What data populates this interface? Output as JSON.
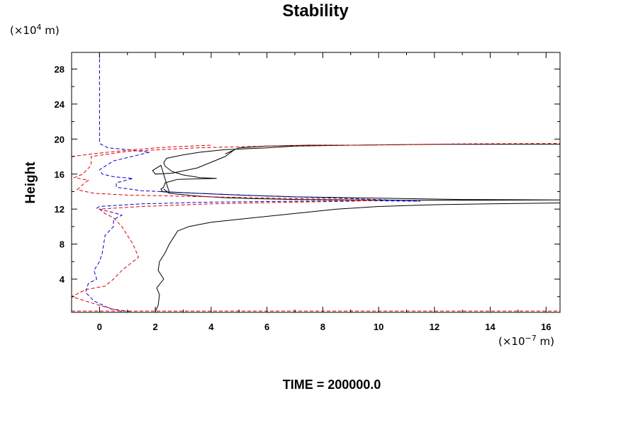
{
  "chart_data": {
    "type": "line",
    "title": "Stability",
    "ylabel": "Height",
    "xlabel": "",
    "y_unit": {
      "prefix": "(×10",
      "exp": "4",
      "suffix": " m)"
    },
    "x_unit": {
      "prefix": "(×10",
      "exp": "−7",
      "suffix": " m)"
    },
    "footer": "TIME = 200000.0",
    "xlim": [
      -1.0,
      16.5
    ],
    "ylim": [
      0.2,
      29.9
    ],
    "x_ticks": [
      0,
      2,
      4,
      6,
      8,
      10,
      12,
      14,
      16
    ],
    "y_ticks": [
      4,
      8,
      12,
      16,
      20,
      24,
      28
    ],
    "x_tick_labels": [
      "0",
      "2",
      "4",
      "6",
      "8",
      "10",
      "12",
      "14",
      "16"
    ],
    "y_tick_labels": [
      "4",
      "8",
      "12",
      "16",
      "20",
      "24",
      "28"
    ],
    "series": [
      {
        "name": "solid",
        "color": "#000000",
        "style": "solid",
        "x": [
          2.0,
          2.1,
          2.15,
          2.05,
          2.3,
          2.1,
          2.15,
          2.35,
          2.5,
          2.7,
          2.8,
          3.2,
          4.0,
          5.5,
          7.0,
          8.5,
          10.0,
          12.0,
          14.0,
          16.5
        ],
        "y": [
          0.3,
          1.0,
          2.2,
          3.0,
          4.0,
          5.0,
          6.0,
          7.0,
          8.0,
          9.0,
          9.5,
          10.0,
          10.5,
          11.0,
          11.5,
          12.0,
          12.3,
          12.5,
          12.6,
          12.7
        ]
      },
      {
        "name": "solid-upper",
        "color": "#000000",
        "style": "solid",
        "x": [
          16.5,
          12.0,
          9.0,
          7.0,
          6.0,
          4.5,
          3.6,
          3.0,
          2.4,
          2.3,
          2.35,
          2.6,
          3.0,
          3.6,
          4.2,
          2.8,
          2.35,
          2.3,
          2.2,
          2.25,
          2.5,
          2.2,
          1.9,
          2.0,
          2.6,
          3.5,
          4.5,
          4.8,
          4.5,
          5.0,
          6.0,
          7.5,
          9.0,
          12.0,
          16.5
        ],
        "y": [
          19.4,
          19.4,
          19.3,
          19.2,
          19.0,
          18.8,
          18.5,
          18.2,
          17.8,
          17.3,
          16.9,
          16.3,
          15.9,
          15.6,
          15.5,
          15.4,
          15.0,
          14.5,
          14.3,
          14.0,
          13.9,
          17.0,
          16.4,
          16.0,
          16.1,
          16.7,
          18.0,
          18.7,
          18.3,
          19.0,
          19.2,
          19.3,
          19.3,
          19.4,
          19.4
        ]
      },
      {
        "name": "solid-spike",
        "color": "#000000",
        "style": "solid",
        "x": [
          2.2,
          3.5,
          5.0,
          7.0,
          9.0,
          11.0,
          13.0,
          16.5,
          13.0,
          11.0,
          9.0,
          7.0,
          5.5,
          4.5,
          3.5,
          2.5,
          2.3
        ],
        "y": [
          14.0,
          13.8,
          13.6,
          13.4,
          13.3,
          13.2,
          13.1,
          13.05,
          13.0,
          13.0,
          13.05,
          13.1,
          13.2,
          13.3,
          13.5,
          13.8,
          14.3
        ]
      },
      {
        "name": "blue-dashed",
        "color": "#0000cc",
        "style": "dashed",
        "x": [
          1.1,
          0.4,
          -0.2,
          -0.5,
          -0.4,
          -0.1,
          -0.2,
          0.0,
          0.1,
          0.15,
          0.2,
          0.5,
          0.5,
          0.8,
          0.5,
          0.1,
          -0.1,
          0.0,
          1.5,
          4.0,
          7.0,
          9.5,
          11.5,
          9.0,
          6.0,
          3.5,
          1.5,
          0.6,
          0.6,
          1.2,
          0.5,
          0.1,
          0.0,
          0.5,
          1.8,
          1.0,
          0.3,
          0.0,
          0.0,
          0.0
        ],
        "y": [
          0.3,
          0.6,
          1.5,
          2.5,
          3.5,
          4.0,
          5.0,
          6.0,
          7.0,
          8.0,
          9.0,
          10.0,
          10.8,
          11.3,
          11.6,
          11.9,
          12.1,
          12.3,
          12.6,
          12.8,
          12.9,
          12.95,
          12.9,
          13.2,
          13.5,
          13.8,
          14.1,
          14.5,
          15.0,
          15.5,
          15.7,
          16.0,
          16.5,
          17.5,
          18.5,
          18.8,
          19.0,
          19.5,
          24.0,
          29.9
        ]
      },
      {
        "name": "red-dashed",
        "color": "#dd0000",
        "style": "dashed",
        "x": [
          0.8,
          0.0,
          -1.0,
          -0.5,
          0.2,
          0.5,
          0.8,
          1.4,
          1.2,
          1.0,
          0.8,
          0.5,
          0.2,
          0.0,
          1.5,
          4.0,
          7.0,
          9.0,
          10.0,
          7.0,
          4.0,
          1.0,
          -0.2,
          -0.8,
          -0.6,
          -0.4,
          -0.9,
          -0.6,
          -0.3,
          -0.3,
          1.0,
          3.5,
          6.0,
          9.0,
          13.0,
          16.5
        ],
        "y": [
          0.3,
          1.0,
          2.0,
          2.8,
          3.2,
          4.0,
          5.0,
          6.5,
          8.0,
          9.0,
          10.0,
          11.0,
          11.5,
          12.0,
          12.3,
          12.6,
          12.8,
          12.9,
          13.0,
          13.2,
          13.4,
          13.6,
          13.8,
          14.2,
          14.8,
          15.3,
          15.6,
          16.0,
          17.0,
          18.0,
          18.6,
          19.0,
          19.2,
          19.3,
          19.45,
          19.5
        ]
      },
      {
        "name": "red-dashed-left",
        "color": "#dd0000",
        "style": "dashed",
        "x": [
          -1.0,
          0.0,
          1.2,
          2.5,
          4.0
        ],
        "y": [
          18.0,
          18.4,
          18.8,
          19.1,
          19.3
        ]
      },
      {
        "name": "red-baseline",
        "color": "#dd0000",
        "style": "dashed",
        "x": [
          -1.0,
          16.5
        ],
        "y": [
          0.35,
          0.35
        ]
      }
    ]
  }
}
